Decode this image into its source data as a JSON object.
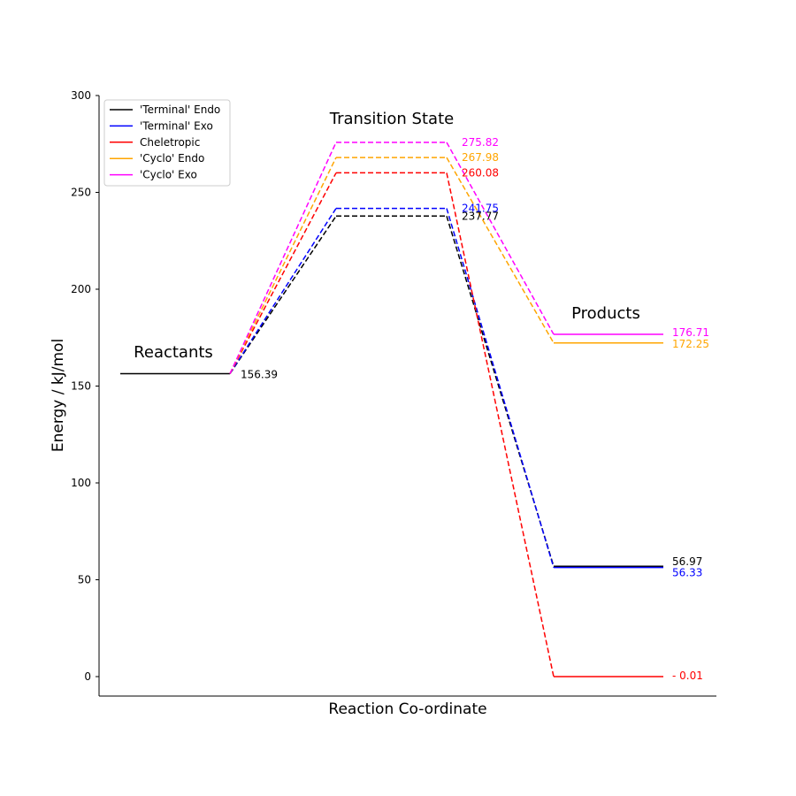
{
  "chart_data": {
    "type": "line",
    "title": "",
    "xlabel": "Reaction Co-ordinate",
    "ylabel": "Energy / kJ/mol",
    "ylim": [
      -10,
      300
    ],
    "yticks": [
      0,
      50,
      100,
      150,
      200,
      250,
      300
    ],
    "grid": false,
    "legend_position": "top-left",
    "stage_labels": [
      "Reactants",
      "Transition State",
      "Products"
    ],
    "reactant_label": "156.39",
    "series": [
      {
        "name": "'Terminal' Endo",
        "color": "#000000",
        "values": [
          156.39,
          237.77,
          56.97
        ],
        "ts_label": "237.77",
        "product_label": "56.97"
      },
      {
        "name": "'Terminal' Exo",
        "color": "#0000ff",
        "values": [
          156.39,
          241.75,
          56.33
        ],
        "ts_label": "241.75",
        "product_label": "56.33"
      },
      {
        "name": "Cheletropic",
        "color": "#ff0000",
        "values": [
          156.39,
          260.08,
          -0.01
        ],
        "ts_label": "260.08",
        "product_label": "- 0.01"
      },
      {
        "name": "'Cyclo' Endo",
        "color": "#ffa500",
        "values": [
          156.39,
          267.98,
          172.25
        ],
        "ts_label": "267.98",
        "product_label": "172.25"
      },
      {
        "name": "'Cyclo' Exo",
        "color": "#ff00ff",
        "values": [
          156.39,
          275.82,
          176.71
        ],
        "ts_label": "275.82",
        "product_label": "176.71"
      }
    ]
  }
}
